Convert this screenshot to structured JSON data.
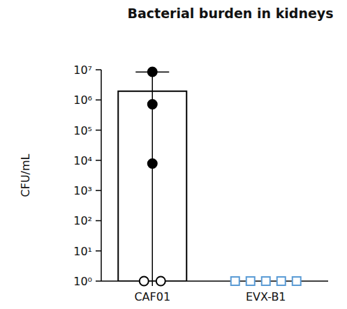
{
  "chart_data": {
    "type": "bar",
    "title": "Bacterial burden in kidneys",
    "y_label": "CFU/mL",
    "categories": [
      "CAF01",
      "EVX-B1"
    ],
    "values": [
      1950000,
      1
    ],
    "error": [
      6500000,
      null
    ],
    "colors": [
      "#000000",
      "#5a9bd5"
    ],
    "points": [
      {
        "values": [
          8500000,
          720000,
          7800,
          1,
          1
        ],
        "marker": "circle"
      },
      {
        "values": [
          1,
          1,
          1,
          1,
          1
        ],
        "marker": "square"
      }
    ],
    "log": "y",
    "grid": false,
    "ylim": [
      1,
      10000000
    ],
    "yticks": [
      {
        "value": 1,
        "label": "10⁰"
      },
      {
        "value": 10,
        "label": "10¹"
      },
      {
        "value": 100,
        "label": "10²"
      },
      {
        "value": 1000,
        "label": "10³"
      },
      {
        "value": 10000,
        "label": "10⁴"
      },
      {
        "value": 100000,
        "label": "10⁵"
      },
      {
        "value": 1000000,
        "label": "10⁶"
      },
      {
        "value": 10000000,
        "label": "10⁷"
      }
    ]
  }
}
